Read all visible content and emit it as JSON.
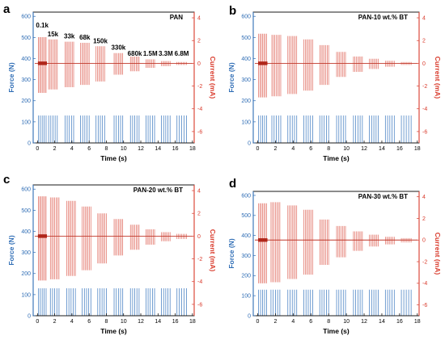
{
  "colors": {
    "force": "#4f86c6",
    "current": "#e06a5e",
    "current_axis": "#d93a2b",
    "force_axis": "#2f6db5"
  },
  "chart_data": [
    {
      "type": "line",
      "panel_letter": "a",
      "title": "PAN",
      "xlabel": "Time (s)",
      "ylabel_left": "Force (N)",
      "ylabel_right": "Current (mA)",
      "xlim": [
        -0.5,
        18.2
      ],
      "ylim_left": [
        0,
        620
      ],
      "ylim_right": [
        -7,
        4.5
      ],
      "xticks": [
        "0",
        "2",
        "4",
        "6",
        "8",
        "10",
        "12",
        "14",
        "16",
        "18"
      ],
      "yticks_left": [
        "0",
        "100",
        "200",
        "300",
        "400",
        "500",
        "600"
      ],
      "yticks_right": [
        "-6",
        "-4",
        "-2",
        "0",
        "2",
        "4"
      ],
      "force_peak_N": 130,
      "segments": [
        {
          "label": "0.1k",
          "x_start": 0.1,
          "x_end": 1.0,
          "current_max": 2.3,
          "current_min": -2.6
        },
        {
          "label": "15k",
          "x_start": 1.3,
          "x_end": 2.3,
          "current_max": 2.1,
          "current_min": -2.3
        },
        {
          "label": "33k",
          "x_start": 3.2,
          "x_end": 4.2,
          "current_max": 1.9,
          "current_min": -2.1
        },
        {
          "label": "68k",
          "x_start": 5.0,
          "x_end": 6.0,
          "current_max": 1.8,
          "current_min": -1.9
        },
        {
          "label": "150k",
          "x_start": 6.8,
          "x_end": 7.8,
          "current_max": 1.5,
          "current_min": -1.6
        },
        {
          "label": "330k",
          "x_start": 8.9,
          "x_end": 9.9,
          "current_max": 0.9,
          "current_min": -1.0
        },
        {
          "label": "680k",
          "x_start": 10.8,
          "x_end": 11.8,
          "current_max": 0.6,
          "current_min": -0.7
        },
        {
          "label": "1.5M",
          "x_start": 12.6,
          "x_end": 13.6,
          "current_max": 0.35,
          "current_min": -0.4
        },
        {
          "label": "3.3M",
          "x_start": 14.4,
          "x_end": 15.4,
          "current_max": 0.2,
          "current_min": -0.25
        },
        {
          "label": "6.8M",
          "x_start": 16.2,
          "x_end": 17.3,
          "current_max": 0.12,
          "current_min": -0.15
        }
      ]
    },
    {
      "type": "line",
      "panel_letter": "b",
      "title": "PAN-10 wt.% BT",
      "xlabel": "Time (s)",
      "ylabel_left": "Force (N)",
      "ylabel_right": "Current (mA)",
      "xlim": [
        -0.5,
        18.2
      ],
      "ylim_left": [
        0,
        620
      ],
      "ylim_right": [
        -7,
        4.5
      ],
      "xticks": [
        "0",
        "2",
        "4",
        "6",
        "8",
        "10",
        "12",
        "14",
        "16",
        "18"
      ],
      "yticks_left": [
        "0",
        "100",
        "200",
        "300",
        "400",
        "500",
        "600"
      ],
      "yticks_right": [
        "-6",
        "-4",
        "-2",
        "0",
        "2",
        "4"
      ],
      "force_peak_N": 130,
      "segments": [
        {
          "label": "",
          "x_start": 0.1,
          "x_end": 1.0,
          "current_max": 2.6,
          "current_min": -3.0
        },
        {
          "label": "",
          "x_start": 1.6,
          "x_end": 2.6,
          "current_max": 2.5,
          "current_min": -2.9
        },
        {
          "label": "",
          "x_start": 3.4,
          "x_end": 4.4,
          "current_max": 2.4,
          "current_min": -2.7
        },
        {
          "label": "",
          "x_start": 5.2,
          "x_end": 6.2,
          "current_max": 2.1,
          "current_min": -2.4
        },
        {
          "label": "",
          "x_start": 7.0,
          "x_end": 8.0,
          "current_max": 1.6,
          "current_min": -1.9
        },
        {
          "label": "",
          "x_start": 8.9,
          "x_end": 9.9,
          "current_max": 1.0,
          "current_min": -1.2
        },
        {
          "label": "",
          "x_start": 10.8,
          "x_end": 11.8,
          "current_max": 0.6,
          "current_min": -0.75
        },
        {
          "label": "",
          "x_start": 12.6,
          "x_end": 13.6,
          "current_max": 0.4,
          "current_min": -0.5
        },
        {
          "label": "",
          "x_start": 14.4,
          "x_end": 15.4,
          "current_max": 0.22,
          "current_min": -0.3
        },
        {
          "label": "",
          "x_start": 16.2,
          "x_end": 17.3,
          "current_max": 0.12,
          "current_min": -0.15
        }
      ]
    },
    {
      "type": "line",
      "panel_letter": "c",
      "title": "PAN-20 wt.% BT",
      "xlabel": "Time (s)",
      "ylabel_left": "Force (N)",
      "ylabel_right": "Current (mA)",
      "xlim": [
        -0.5,
        18.2
      ],
      "ylim_left": [
        0,
        620
      ],
      "ylim_right": [
        -7,
        4.5
      ],
      "xticks": [
        "0",
        "2",
        "4",
        "6",
        "8",
        "10",
        "12",
        "14",
        "16",
        "18"
      ],
      "yticks_left": [
        "0",
        "100",
        "200",
        "300",
        "400",
        "500",
        "600"
      ],
      "yticks_right": [
        "-6",
        "-4",
        "-2",
        "0",
        "2",
        "4"
      ],
      "force_peak_N": 130,
      "segments": [
        {
          "label": "",
          "x_start": 0.1,
          "x_end": 1.0,
          "current_max": 3.5,
          "current_min": -3.9
        },
        {
          "label": "",
          "x_start": 1.5,
          "x_end": 2.5,
          "current_max": 3.4,
          "current_min": -3.8
        },
        {
          "label": "",
          "x_start": 3.4,
          "x_end": 4.4,
          "current_max": 3.1,
          "current_min": -3.5
        },
        {
          "label": "",
          "x_start": 5.2,
          "x_end": 6.2,
          "current_max": 2.6,
          "current_min": -3.0
        },
        {
          "label": "",
          "x_start": 7.0,
          "x_end": 8.0,
          "current_max": 2.0,
          "current_min": -2.4
        },
        {
          "label": "",
          "x_start": 8.9,
          "x_end": 9.9,
          "current_max": 1.5,
          "current_min": -1.7
        },
        {
          "label": "",
          "x_start": 10.8,
          "x_end": 11.8,
          "current_max": 1.0,
          "current_min": -1.2
        },
        {
          "label": "",
          "x_start": 12.6,
          "x_end": 13.6,
          "current_max": 0.6,
          "current_min": -0.75
        },
        {
          "label": "",
          "x_start": 14.4,
          "x_end": 15.4,
          "current_max": 0.35,
          "current_min": -0.45
        },
        {
          "label": "",
          "x_start": 16.2,
          "x_end": 17.3,
          "current_max": 0.2,
          "current_min": -0.25
        }
      ]
    },
    {
      "type": "line",
      "panel_letter": "d",
      "title": "PAN-30 wt.% BT",
      "xlabel": "Time (s)",
      "ylabel_left": "Force (N)",
      "ylabel_right": "Current (mA)",
      "xlim": [
        -0.5,
        18.2
      ],
      "ylim_left": [
        0,
        620
      ],
      "ylim_right": [
        -7,
        4.5
      ],
      "xticks": [
        "0",
        "2",
        "4",
        "6",
        "8",
        "10",
        "12",
        "14",
        "16",
        "18"
      ],
      "yticks_left": [
        "0",
        "100",
        "200",
        "300",
        "400",
        "500",
        "600"
      ],
      "yticks_right": [
        "-6",
        "-4",
        "-2",
        "0",
        "2",
        "4"
      ],
      "force_peak_N": 130,
      "segments": [
        {
          "label": "",
          "x_start": 0.1,
          "x_end": 1.0,
          "current_max": 3.4,
          "current_min": -4.0
        },
        {
          "label": "",
          "x_start": 1.5,
          "x_end": 2.5,
          "current_max": 3.5,
          "current_min": -3.9
        },
        {
          "label": "",
          "x_start": 3.4,
          "x_end": 4.4,
          "current_max": 3.2,
          "current_min": -3.6
        },
        {
          "label": "",
          "x_start": 5.2,
          "x_end": 6.2,
          "current_max": 2.8,
          "current_min": -3.2
        },
        {
          "label": "",
          "x_start": 7.0,
          "x_end": 8.0,
          "current_max": 1.9,
          "current_min": -2.3
        },
        {
          "label": "",
          "x_start": 8.9,
          "x_end": 9.9,
          "current_max": 1.3,
          "current_min": -1.6
        },
        {
          "label": "",
          "x_start": 10.8,
          "x_end": 11.8,
          "current_max": 0.8,
          "current_min": -1.0
        },
        {
          "label": "",
          "x_start": 12.6,
          "x_end": 13.6,
          "current_max": 0.5,
          "current_min": -0.6
        },
        {
          "label": "",
          "x_start": 14.4,
          "x_end": 15.4,
          "current_max": 0.3,
          "current_min": -0.4
        },
        {
          "label": "",
          "x_start": 16.2,
          "x_end": 17.3,
          "current_max": 0.18,
          "current_min": -0.22
        }
      ]
    }
  ]
}
